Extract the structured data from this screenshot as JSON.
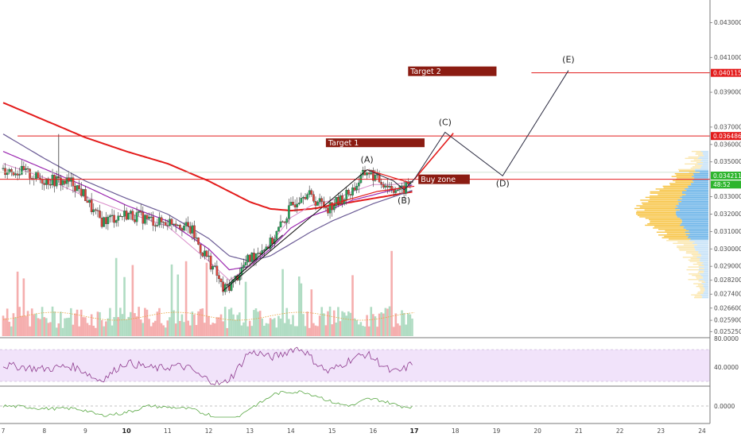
{
  "chart_data": {
    "type": "candlestick",
    "price_axis": {
      "ticks": [
        "0.043000",
        "0.041000",
        "0.039000",
        "0.037000",
        "0.036000",
        "0.035000",
        "0.033000",
        "0.032000",
        "0.031000",
        "0.030000",
        "0.029000",
        "0.028200",
        "0.027400",
        "0.026600",
        "0.025900",
        "0.025250"
      ],
      "ylim": [
        0.0249,
        0.0443
      ],
      "tags": [
        {
          "value": "0.040115",
          "price": 0.040115,
          "color": "#e31b1b"
        },
        {
          "value": "0.036486",
          "price": 0.036486,
          "color": "#e31b1b"
        },
        {
          "value": "0.034211",
          "price": 0.034211,
          "color": "#2db52d"
        },
        {
          "value": "48:52",
          "price": 0.0337,
          "color": "#2db52d"
        }
      ]
    },
    "x_axis": {
      "labels": [
        "7",
        "8",
        "9",
        "10",
        "11",
        "12",
        "13",
        "14",
        "15",
        "16",
        "17",
        "18",
        "19",
        "20",
        "21",
        "22",
        "23",
        "24"
      ],
      "bold": [
        "10",
        "17"
      ],
      "xlim": [
        7.0,
        24.0
      ]
    },
    "levels": [
      {
        "name": "Target 2",
        "price": 0.040115
      },
      {
        "name": "Target 1",
        "price": 0.036486
      },
      {
        "name": "Buy zone",
        "price": 0.034
      }
    ],
    "wave_points": [
      {
        "label": "(A)",
        "day": 15.85,
        "price": 0.03455
      },
      {
        "label": "(B)",
        "day": 16.75,
        "price": 0.0332
      },
      {
        "label": "(C)",
        "day": 17.75,
        "price": 0.0367
      },
      {
        "label": "(D)",
        "day": 19.15,
        "price": 0.0342
      },
      {
        "label": "(E)",
        "day": 20.75,
        "price": 0.04025
      }
    ],
    "price_path": [
      [
        7.0,
        0.0346
      ],
      [
        7.5,
        0.0344
      ],
      [
        7.9,
        0.034
      ],
      [
        8.3,
        0.0339
      ],
      [
        8.7,
        0.0338
      ],
      [
        9.0,
        0.033
      ],
      [
        9.2,
        0.0321
      ],
      [
        9.4,
        0.0316
      ],
      [
        9.7,
        0.0318
      ],
      [
        10.0,
        0.032
      ],
      [
        10.4,
        0.0318
      ],
      [
        10.8,
        0.0315
      ],
      [
        11.2,
        0.0316
      ],
      [
        11.6,
        0.031
      ],
      [
        11.8,
        0.03
      ],
      [
        12.0,
        0.0294
      ],
      [
        12.2,
        0.0285
      ],
      [
        12.35,
        0.0276
      ],
      [
        12.6,
        0.0281
      ],
      [
        12.9,
        0.0292
      ],
      [
        13.2,
        0.0299
      ],
      [
        13.5,
        0.0303
      ],
      [
        13.8,
        0.0315
      ],
      [
        14.0,
        0.0324
      ],
      [
        14.3,
        0.0333
      ],
      [
        14.6,
        0.0328
      ],
      [
        14.9,
        0.0324
      ],
      [
        15.2,
        0.0328
      ],
      [
        15.5,
        0.0334
      ],
      [
        15.85,
        0.0345
      ],
      [
        16.1,
        0.034
      ],
      [
        16.4,
        0.0336
      ],
      [
        16.7,
        0.0333
      ],
      [
        17.0,
        0.0341
      ]
    ],
    "moving_averages": [
      {
        "color": "#e31b1b",
        "width": 2,
        "points": [
          [
            7.0,
            0.0384
          ],
          [
            8.0,
            0.0374
          ],
          [
            9.0,
            0.0364
          ],
          [
            10.0,
            0.0356
          ],
          [
            11.0,
            0.0349
          ],
          [
            12.0,
            0.0339
          ],
          [
            13.0,
            0.0327
          ],
          [
            13.5,
            0.0323
          ],
          [
            14.0,
            0.0322
          ],
          [
            14.5,
            0.0323
          ],
          [
            15.0,
            0.0325
          ],
          [
            15.5,
            0.0327
          ],
          [
            16.0,
            0.0329
          ],
          [
            16.5,
            0.0331
          ],
          [
            17.0,
            0.0333
          ]
        ]
      },
      {
        "color": "#6b5b95",
        "width": 1.2,
        "points": [
          [
            7.0,
            0.0366
          ],
          [
            8.0,
            0.0352
          ],
          [
            9.0,
            0.0339
          ],
          [
            10.0,
            0.0329
          ],
          [
            11.0,
            0.032
          ],
          [
            12.0,
            0.0306
          ],
          [
            12.5,
            0.0296
          ],
          [
            13.0,
            0.0293
          ],
          [
            13.5,
            0.0296
          ],
          [
            14.0,
            0.0303
          ],
          [
            14.5,
            0.031
          ],
          [
            15.0,
            0.0316
          ],
          [
            15.5,
            0.0321
          ],
          [
            16.0,
            0.0326
          ],
          [
            16.5,
            0.033
          ],
          [
            17.0,
            0.0334
          ]
        ]
      },
      {
        "color": "#9b27b0",
        "width": 1.2,
        "points": [
          [
            7.0,
            0.0356
          ],
          [
            8.0,
            0.0346
          ],
          [
            9.0,
            0.0336
          ],
          [
            10.0,
            0.0325
          ],
          [
            11.0,
            0.0316
          ],
          [
            12.0,
            0.03
          ],
          [
            12.5,
            0.0288
          ],
          [
            13.0,
            0.029
          ],
          [
            13.5,
            0.03
          ],
          [
            14.0,
            0.0312
          ],
          [
            14.5,
            0.0319
          ],
          [
            15.0,
            0.0323
          ],
          [
            15.5,
            0.0328
          ],
          [
            16.0,
            0.0331
          ],
          [
            16.5,
            0.0334
          ],
          [
            17.0,
            0.0337
          ]
        ]
      },
      {
        "color": "#d98cc9",
        "width": 1,
        "points": [
          [
            7.0,
            0.0349
          ],
          [
            8.0,
            0.0341
          ],
          [
            9.0,
            0.033
          ],
          [
            10.0,
            0.0321
          ],
          [
            11.0,
            0.0313
          ],
          [
            12.0,
            0.0293
          ],
          [
            12.5,
            0.0282
          ],
          [
            13.0,
            0.029
          ],
          [
            13.5,
            0.0303
          ],
          [
            14.0,
            0.0318
          ],
          [
            14.5,
            0.0325
          ],
          [
            15.0,
            0.0328
          ],
          [
            15.5,
            0.0333
          ],
          [
            16.0,
            0.0337
          ],
          [
            16.5,
            0.0337
          ],
          [
            17.0,
            0.0339
          ]
        ]
      }
    ],
    "volume_profile_ranges": [
      0.0272,
      0.0356
    ],
    "rsi": {
      "levels": [
        "80.0000",
        "40.0000"
      ],
      "band": [
        30,
        70
      ]
    },
    "oscillator": {
      "levels": [
        "0.0000"
      ]
    }
  }
}
